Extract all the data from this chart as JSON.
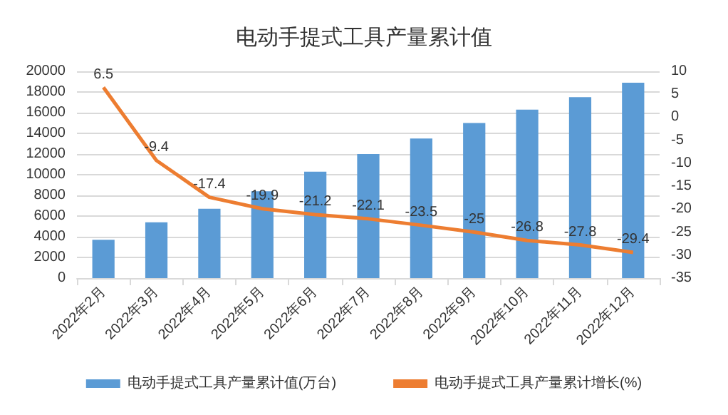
{
  "chart_data": {
    "type": "bar",
    "title": "电动手提式工具产量累计值",
    "categories": [
      "2022年2月",
      "2022年3月",
      "2022年4月",
      "2022年5月",
      "2022年6月",
      "2022年7月",
      "2022年8月",
      "2022年9月",
      "2022年10月",
      "2022年11月",
      "2022年12月"
    ],
    "series": [
      {
        "name": "电动手提式工具产量累计值(万台)",
        "color": "#5b9bd5",
        "values": [
          3700,
          5400,
          6700,
          8400,
          10300,
          12000,
          13500,
          15000,
          16300,
          17500,
          18900
        ]
      },
      {
        "name": "电动手提式工具产量累计增长(%)",
        "type": "line",
        "axis": "y2",
        "color": "#ed7d31",
        "marker": "none",
        "values": [
          6.5,
          -9.4,
          -17.4,
          -19.9,
          -21.2,
          -22.1,
          -23.5,
          -25,
          -26.8,
          -27.8,
          -29.4
        ],
        "value_labels": [
          "6.5",
          "-9.4",
          "-17.4",
          "-19.9",
          "-21.2",
          "-22.1",
          "-23.5",
          "-25",
          "-26.8",
          "-27.8",
          "-29.4"
        ]
      }
    ],
    "ylim": [
      0,
      20000
    ],
    "yticks": [
      0,
      2000,
      4000,
      6000,
      8000,
      10000,
      12000,
      14000,
      16000,
      18000,
      20000
    ],
    "y2lim": [
      -35,
      10
    ],
    "y2ticks": [
      -35,
      -30,
      -25,
      -20,
      -15,
      -10,
      -5,
      0,
      5,
      10
    ],
    "grid": "y",
    "legend": "bottom"
  }
}
